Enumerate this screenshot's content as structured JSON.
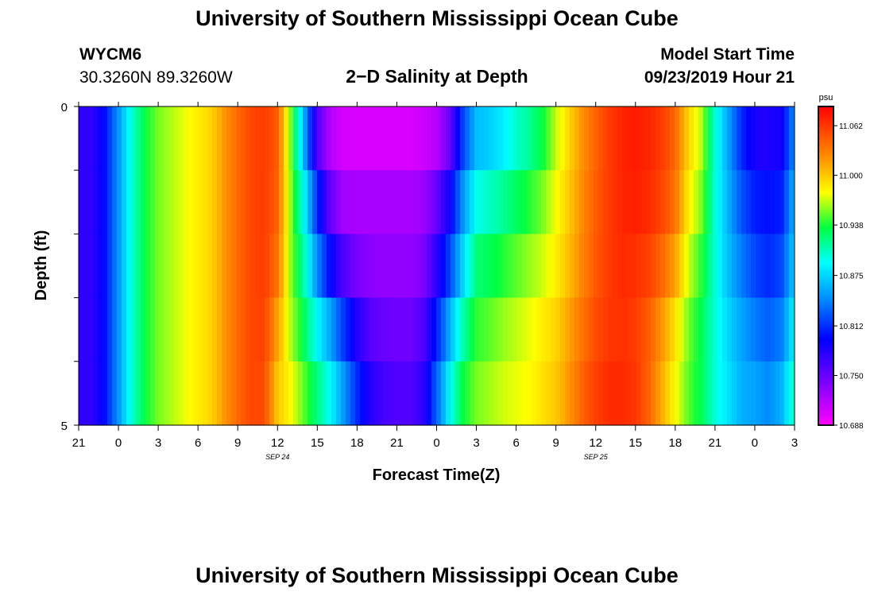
{
  "page": {
    "title_top": "University of Southern Mississippi Ocean Cube",
    "title_bottom": "University of Southern Mississippi Ocean Cube",
    "station_id": "WYCM6",
    "coordinates": "30.3260N 89.3260W",
    "plot_title": "2−D Salinity at Depth",
    "model_start_label": "Model Start Time",
    "model_start_value": "09/23/2019 Hour 21"
  },
  "chart_data": {
    "type": "heatmap",
    "title": "2−D Salinity at Depth",
    "xlabel": "Forecast Time(Z)",
    "ylabel": "Depth (ft)",
    "x_tick_labels": [
      "21",
      "0",
      "3",
      "6",
      "9",
      "12",
      "15",
      "18",
      "21",
      "0",
      "3",
      "6",
      "9",
      "12",
      "15",
      "18",
      "21",
      "0",
      "3"
    ],
    "x_hours": [
      0,
      3,
      6,
      9,
      12,
      15,
      18,
      21,
      24,
      27,
      30,
      33,
      36,
      39,
      42,
      45,
      48,
      51,
      54
    ],
    "date_labels": [
      {
        "text": "SEP 24",
        "hour": 15
      },
      {
        "text": "SEP 25",
        "hour": 39
      }
    ],
    "y_tick_labels": [
      "0",
      "5"
    ],
    "ylim": [
      0,
      5
    ],
    "colorbar": {
      "unit": "psu",
      "min": 10.688,
      "max": 11.086,
      "tick_labels": [
        "11.062",
        "11.000",
        "10.938",
        "10.875",
        "10.812",
        "10.750",
        "10.688"
      ],
      "tick_values": [
        11.062,
        11.0,
        10.938,
        10.875,
        10.812,
        10.75,
        10.688
      ]
    },
    "depth_levels_ft": [
      0.0,
      1.0,
      2.0,
      3.0,
      4.0,
      5.0
    ],
    "keyframes_hours": [
      0,
      1,
      2,
      3,
      4,
      5,
      6,
      7,
      8,
      9,
      10,
      11,
      12,
      13,
      14,
      15,
      16,
      17,
      18,
      19,
      20,
      21,
      22,
      23,
      24,
      25,
      26,
      27,
      28,
      29,
      30,
      31,
      32,
      33,
      34,
      35,
      36,
      37,
      38,
      39,
      40,
      41,
      42,
      43,
      44,
      45,
      46,
      47,
      48,
      49,
      50,
      51,
      52,
      53,
      54
    ],
    "salinity_psu": [
      [
        10.775,
        10.775,
        10.8,
        10.85,
        10.9,
        10.935,
        10.955,
        10.965,
        10.975,
        10.985,
        10.995,
        11.02,
        11.04,
        11.055,
        11.06,
        11.045,
        10.95,
        10.84,
        10.72,
        10.695,
        10.69,
        10.688,
        10.688,
        10.688,
        10.688,
        10.688,
        10.69,
        10.695,
        10.72,
        10.8,
        10.85,
        10.855,
        10.87,
        10.89,
        10.9,
        10.92,
        10.96,
        10.99,
        11.02,
        11.04,
        11.06,
        11.07,
        11.075,
        11.07,
        11.06,
        11.04,
        11.0,
        10.97,
        10.9,
        10.85,
        10.8,
        10.77,
        10.765,
        10.775,
        10.84
      ],
      [
        10.775,
        10.775,
        10.8,
        10.85,
        10.9,
        10.935,
        10.955,
        10.965,
        10.975,
        10.985,
        10.995,
        11.02,
        11.04,
        11.055,
        11.06,
        11.045,
        10.96,
        10.88,
        10.8,
        10.74,
        10.72,
        10.72,
        10.72,
        10.72,
        10.72,
        10.72,
        10.725,
        10.74,
        10.78,
        10.84,
        10.88,
        10.89,
        10.9,
        10.915,
        10.93,
        10.95,
        10.975,
        11.0,
        11.025,
        11.045,
        11.06,
        11.07,
        11.075,
        11.07,
        11.06,
        11.04,
        10.99,
        10.96,
        10.9,
        10.86,
        10.82,
        10.8,
        10.8,
        10.8,
        10.86
      ],
      [
        10.775,
        10.775,
        10.8,
        10.85,
        10.9,
        10.935,
        10.955,
        10.965,
        10.975,
        10.985,
        10.995,
        11.02,
        11.04,
        11.055,
        11.06,
        11.04,
        10.96,
        10.9,
        10.82,
        10.76,
        10.73,
        10.725,
        10.725,
        10.725,
        10.725,
        10.725,
        10.73,
        10.76,
        10.8,
        10.86,
        10.91,
        10.92,
        10.93,
        10.94,
        10.95,
        10.96,
        10.98,
        11.0,
        11.025,
        11.045,
        11.06,
        11.07,
        11.07,
        11.065,
        11.05,
        11.03,
        10.98,
        10.95,
        10.9,
        10.86,
        10.83,
        10.81,
        10.8,
        10.81,
        10.87
      ],
      [
        10.775,
        10.775,
        10.8,
        10.85,
        10.9,
        10.935,
        10.955,
        10.965,
        10.975,
        10.985,
        10.995,
        11.02,
        11.04,
        11.055,
        11.06,
        11.03,
        10.96,
        10.92,
        10.87,
        10.83,
        10.79,
        10.76,
        10.745,
        10.74,
        10.74,
        10.74,
        10.75,
        10.79,
        10.84,
        10.89,
        10.935,
        10.94,
        10.95,
        10.96,
        10.97,
        10.98,
        10.99,
        11.01,
        11.03,
        11.05,
        11.06,
        11.065,
        11.06,
        11.05,
        11.03,
        11.0,
        10.96,
        10.93,
        10.9,
        10.87,
        10.85,
        10.83,
        10.82,
        10.83,
        10.88
      ],
      [
        10.775,
        10.775,
        10.8,
        10.85,
        10.9,
        10.935,
        10.955,
        10.965,
        10.975,
        10.985,
        10.995,
        11.02,
        11.04,
        11.055,
        11.055,
        11.0,
        10.97,
        10.94,
        10.91,
        10.88,
        10.84,
        10.8,
        10.77,
        10.76,
        10.755,
        10.755,
        10.77,
        10.82,
        10.88,
        10.93,
        10.95,
        10.96,
        10.97,
        10.975,
        10.98,
        10.99,
        11.0,
        11.02,
        11.04,
        11.055,
        11.065,
        11.065,
        11.06,
        11.04,
        11.01,
        10.98,
        10.95,
        10.93,
        10.9,
        10.88,
        10.86,
        10.85,
        10.84,
        10.85,
        10.9
      ],
      [
        10.775,
        10.775,
        10.8,
        10.85,
        10.9,
        10.935,
        10.955,
        10.965,
        10.975,
        10.985,
        10.995,
        11.02,
        11.04,
        11.055,
        11.05,
        11.0,
        10.99,
        10.96,
        10.93,
        10.9,
        10.86,
        10.82,
        10.79,
        10.77,
        10.765,
        10.765,
        10.78,
        10.84,
        10.9,
        10.94,
        10.96,
        10.965,
        10.97,
        10.975,
        10.98,
        10.99,
        11.0,
        11.02,
        11.045,
        11.06,
        11.07,
        11.07,
        11.065,
        11.045,
        11.01,
        10.98,
        10.95,
        10.93,
        10.9,
        10.88,
        10.86,
        10.86,
        10.85,
        10.87,
        10.92
      ]
    ]
  }
}
